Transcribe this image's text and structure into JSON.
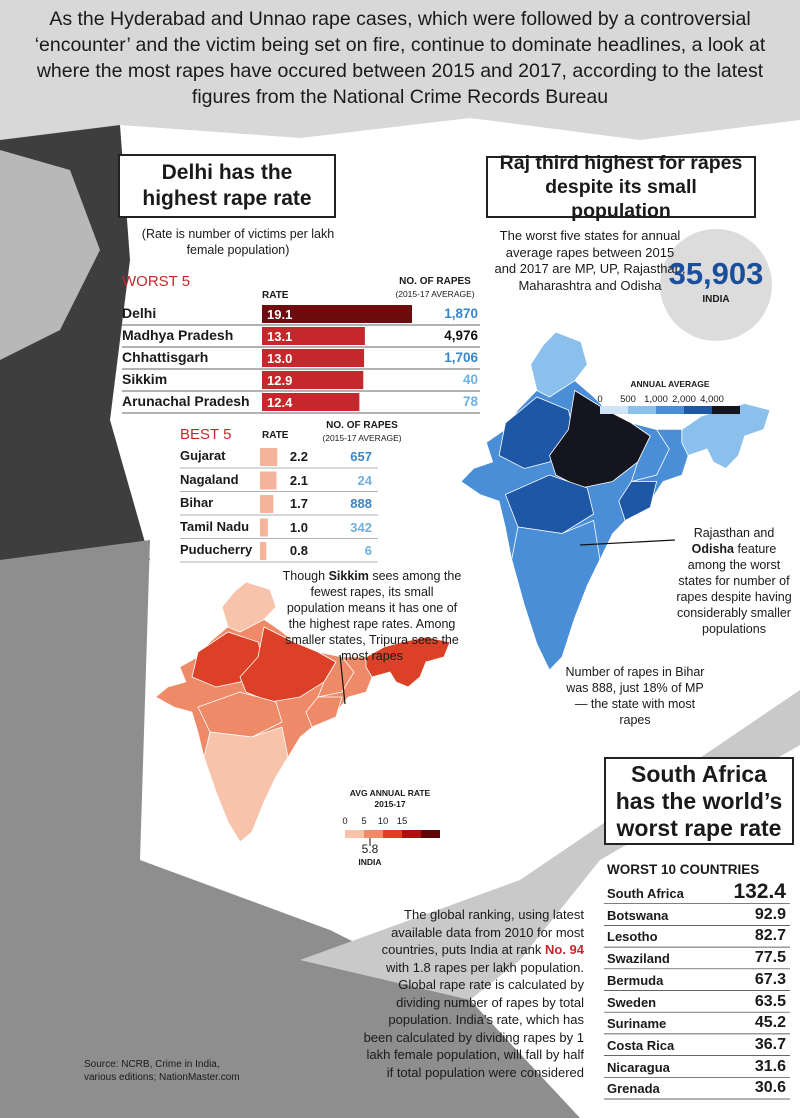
{
  "intro": "As the Hyderabad and Unnao rape cases, which were followed by a controversial ‘encounter’ and the victim being set on fire, continue to dominate headlines, a look at where the most rapes have occured between 2015 and 2017, according to the latest figures from the National Crime Records Bureau",
  "rate_panel": {
    "title": "Delhi has the highest rape rate",
    "note": "(Rate is number of victims per lakh female population)",
    "worst": {
      "heading": "WORST 5",
      "rate_header": "RATE",
      "rapes_header": "NO. OF RAPES",
      "rapes_subheader": "(2015-17 AVERAGE)",
      "rows": [
        {
          "state": "Delhi",
          "rate": 19.1,
          "rapes": "1,870",
          "bar_color": "#6e0b0e",
          "rapes_color": "#3a86c8"
        },
        {
          "state": "Madhya Pradesh",
          "rate": 13.1,
          "rapes": "4,976",
          "bar_color": "#c4282c",
          "rapes_color": "#111111"
        },
        {
          "state": "Chhattisgarh",
          "rate": {
            "value": 13.0,
            "label": "13.0"
          },
          "rapes": "1,706",
          "bar_color": "#c4282c",
          "rapes_color": "#3a86c8"
        },
        {
          "state": "Sikkim",
          "rate": 12.9,
          "rapes": "40",
          "bar_color": "#c4282c",
          "rapes_color": "#6fb0e0"
        },
        {
          "state": "Arunachal Pradesh",
          "rate": 12.4,
          "rapes": "78",
          "bar_color": "#c4282c",
          "rapes_color": "#6fb0e0"
        }
      ]
    },
    "best": {
      "heading": "BEST 5",
      "rate_header": "RATE",
      "rapes_header": "NO. OF RAPES",
      "rapes_subheader": "(2015-17 AVERAGE)",
      "rows": [
        {
          "state": "Gujarat",
          "rate": 2.2,
          "rapes": "657",
          "bar_color": "#f6b39c",
          "rapes_color": "#3a86c8"
        },
        {
          "state": "Nagaland",
          "rate": 2.1,
          "rapes": "24",
          "bar_color": "#f6b39c",
          "rapes_color": "#6fb0e0"
        },
        {
          "state": "Bihar",
          "rate": 1.7,
          "rapes": "888",
          "bar_color": "#f6b39c",
          "rapes_color": "#3a86c8"
        },
        {
          "state": "Tamil Nadu",
          "rate": {
            "value": 1.0,
            "label": "1.0"
          },
          "rapes": "342",
          "bar_color": "#f6b39c",
          "rapes_color": "#6fb0e0"
        },
        {
          "state": "Puducherry",
          "rate": 0.8,
          "rapes": "6",
          "bar_color": "#f6b39c",
          "rapes_color": "#6fb0e0"
        }
      ]
    },
    "map_note": {
      "before": "Though",
      "bold": "Sikkim",
      "after": "sees among the fewest rapes, its small population means it has one of the highest rape rates. Among smaller states, Tripura sees the most rapes"
    },
    "legend_title": "AVG ANNUAL RATE",
    "legend_subtitle": "2015-17",
    "legend_ticks": [
      "0",
      "5",
      "10",
      "15"
    ],
    "legend_colors": [
      "#f8c3ab",
      "#ef8a68",
      "#dc4027",
      "#aa1212",
      "#5e0606"
    ],
    "india_rate": "5.8",
    "india_label": "INDIA"
  },
  "rapes_panel": {
    "title": "Raj third highest for rapes despite its small population",
    "text": "The worst five states for annual average rapes between 2015 and 2017 are MP, UP, Rajasthan, Maharashtra and Odisha",
    "india_total": "35,903",
    "india_label": "INDIA",
    "legend_title": "ANNUAL AVERAGE",
    "legend_ticks": [
      "0",
      "500",
      "1,000",
      "2,000",
      "4,000"
    ],
    "legend_colors": [
      "#cfe4f6",
      "#8bc0ec",
      "#4a8ed8",
      "#1d57a6",
      "#15151f"
    ],
    "odisha_note": {
      "before": "Rajasthan and",
      "bold": "Odisha",
      "after": "feature among the worst states for number of rapes despite having considerably smaller populations"
    },
    "bihar_note": "Number of rapes in Bihar was 888, just 18% of MP — the state with most rapes"
  },
  "world_panel": {
    "title": "South Africa has the world’s worst rape rate",
    "heading": "WORST 10 COUNTRIES",
    "rows": [
      {
        "country": "South Africa",
        "rate": 132.4
      },
      {
        "country": "Botswana",
        "rate": 92.9
      },
      {
        "country": "Lesotho",
        "rate": 82.7
      },
      {
        "country": "Swaziland",
        "rate": 77.5
      },
      {
        "country": "Bermuda",
        "rate": 67.3
      },
      {
        "country": "Sweden",
        "rate": 63.5
      },
      {
        "country": "Suriname",
        "rate": 45.2
      },
      {
        "country": "Costa Rica",
        "rate": 36.7
      },
      {
        "country": "Nicaragua",
        "rate": 31.6
      },
      {
        "country": "Grenada",
        "rate": 30.6
      }
    ],
    "note": {
      "before": "The global ranking, using latest available data from 2010 for most countries, puts India at rank",
      "highlight": "No. 94",
      "after": "with 1.8 rapes per lakh population. Global rape rate is calculated by dividing number of rapes by total population. India’s rate, which has been calculated by dividing rapes by 1 lakh female population, will fall by half if total population were considered"
    }
  },
  "source": "Source: NCRB, Crime in India, various editions; NationMaster.com"
}
